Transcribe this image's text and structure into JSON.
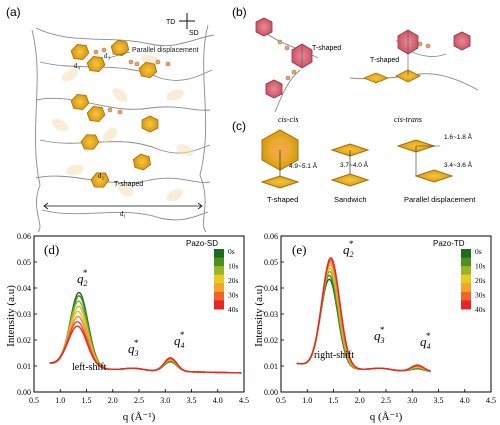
{
  "panels": {
    "a": {
      "label": "(a)",
      "direction_td": "TD",
      "direction_sd": "SD",
      "parallel_text": "Parallel displacement",
      "tshaped_text": "T-shaped",
      "d1": "d₁",
      "d2": "d₂",
      "d3": "d₃",
      "d4": "d₄"
    },
    "b": {
      "label": "(b)",
      "cis_cis": "cis-cis",
      "cis_trans": "cis-trans",
      "tshaped_left": "T-shaped",
      "tshaped_right": "T-shaped"
    },
    "c": {
      "label": "(c)",
      "dist_t": "4.9~5.1 Å",
      "dist_sandwich": "3.7~4.0 Å",
      "dist_par_top": "1.6~1.8 Å",
      "dist_par_side": "3.4~3.6 Å",
      "cap_t": "T-shaped",
      "cap_sandwich": "Sandwich",
      "cap_parallel": "Parallel displacement"
    }
  },
  "colors": {
    "gold_fill": "#E8A817",
    "gold_stroke": "#A86E00",
    "red_fill": "#D96A7A",
    "red_stroke": "#9C2E42"
  },
  "chart_data": [
    {
      "type": "line",
      "panel_label": "(d)",
      "legend_title": "Pazo-SD",
      "legend_entries": [
        "0s",
        "10s",
        "20s",
        "30s",
        "40s"
      ],
      "legend_colors": [
        "#1E6B1E",
        "#4E8F22",
        "#9BB52A",
        "#E9CC22",
        "#F3A52A",
        "#F0642A",
        "#E8262A"
      ],
      "xlabel": "q (Å⁻¹)",
      "ylabel": "Intensity (a.u)",
      "xlim": [
        0.5,
        4.5
      ],
      "ylim": [
        0,
        0.06
      ],
      "xticks": [
        "0.5",
        "1.0",
        "1.5",
        "2.0",
        "2.5",
        "3.0",
        "3.5",
        "4.0",
        "4.5"
      ],
      "yticks": [
        "0.00",
        "0.01",
        "0.02",
        "0.03",
        "0.04",
        "0.05",
        "0.06"
      ],
      "annotations": {
        "q2": "q",
        "q3": "q",
        "q4": "q",
        "q2_sub": "2",
        "q3_sub": "3",
        "q4_sub": "4",
        "star": "*",
        "shift": "left-shift"
      },
      "x_range": [
        0.8,
        4.45
      ],
      "series": [
        {
          "color": "#1E6B1E",
          "peak_x": 1.36,
          "peak_y": 0.0378,
          "width": 0.24,
          "q4_y": 0.0122
        },
        {
          "color": "#3F8A24",
          "peak_x": 1.36,
          "peak_y": 0.0365,
          "width": 0.24,
          "q4_y": 0.0124
        },
        {
          "color": "#7FAE2A",
          "peak_x": 1.35,
          "peak_y": 0.0345,
          "width": 0.245,
          "q4_y": 0.0127
        },
        {
          "color": "#C8C326",
          "peak_x": 1.35,
          "peak_y": 0.0325,
          "width": 0.245,
          "q4_y": 0.0129
        },
        {
          "color": "#F0B72A",
          "peak_x": 1.34,
          "peak_y": 0.0305,
          "width": 0.25,
          "q4_y": 0.0131
        },
        {
          "color": "#F3862A",
          "peak_x": 1.34,
          "peak_y": 0.0285,
          "width": 0.25,
          "q4_y": 0.0133
        },
        {
          "color": "#EE4A2A",
          "peak_x": 1.33,
          "peak_y": 0.0265,
          "width": 0.255,
          "q4_y": 0.0135
        },
        {
          "color": "#E8262A",
          "peak_x": 1.33,
          "peak_y": 0.0248,
          "width": 0.255,
          "q4_y": 0.0137
        }
      ]
    },
    {
      "type": "line",
      "panel_label": "(e)",
      "legend_title": "Pazo-TD",
      "legend_entries": [
        "0s",
        "10s",
        "20s",
        "30s",
        "40s"
      ],
      "legend_colors": [
        "#1E6B1E",
        "#4E8F22",
        "#9BB52A",
        "#E9CC22",
        "#F3A52A",
        "#F0642A",
        "#E8262A"
      ],
      "xlabel": "q (Å⁻¹)",
      "ylabel": "Intensity (a.u)",
      "xlim": [
        0.5,
        4.5
      ],
      "ylim": [
        0,
        0.06
      ],
      "xticks": [
        "0.5",
        "1.0",
        "1.5",
        "2.0",
        "2.5",
        "3.0",
        "3.5",
        "4.0",
        "4.5"
      ],
      "yticks": [
        "0.00",
        "0.01",
        "0.02",
        "0.03",
        "0.04",
        "0.05",
        "0.06"
      ],
      "annotations": {
        "q2": "q",
        "q3": "q",
        "q4": "q",
        "q2_sub": "2",
        "q3_sub": "3",
        "q4_sub": "4",
        "star": "*",
        "shift": "right-shift"
      },
      "x_range": [
        0.8,
        3.35
      ],
      "series": [
        {
          "color": "#1E6B1E",
          "peak_x": 1.42,
          "peak_y": 0.043,
          "width": 0.23,
          "q4_y": 0.0095
        },
        {
          "color": "#3F8A24",
          "peak_x": 1.42,
          "peak_y": 0.0445,
          "width": 0.23,
          "q4_y": 0.0097
        },
        {
          "color": "#7FAE2A",
          "peak_x": 1.43,
          "peak_y": 0.046,
          "width": 0.23,
          "q4_y": 0.0099
        },
        {
          "color": "#C8C326",
          "peak_x": 1.43,
          "peak_y": 0.0472,
          "width": 0.235,
          "q4_y": 0.0101
        },
        {
          "color": "#F0B72A",
          "peak_x": 1.44,
          "peak_y": 0.0485,
          "width": 0.235,
          "q4_y": 0.0103
        },
        {
          "color": "#F3862A",
          "peak_x": 1.44,
          "peak_y": 0.0496,
          "width": 0.235,
          "q4_y": 0.0105
        },
        {
          "color": "#EE4A2A",
          "peak_x": 1.45,
          "peak_y": 0.0505,
          "width": 0.24,
          "q4_y": 0.0107
        },
        {
          "color": "#E8262A",
          "peak_x": 1.45,
          "peak_y": 0.0513,
          "width": 0.24,
          "q4_y": 0.0109
        }
      ]
    }
  ]
}
